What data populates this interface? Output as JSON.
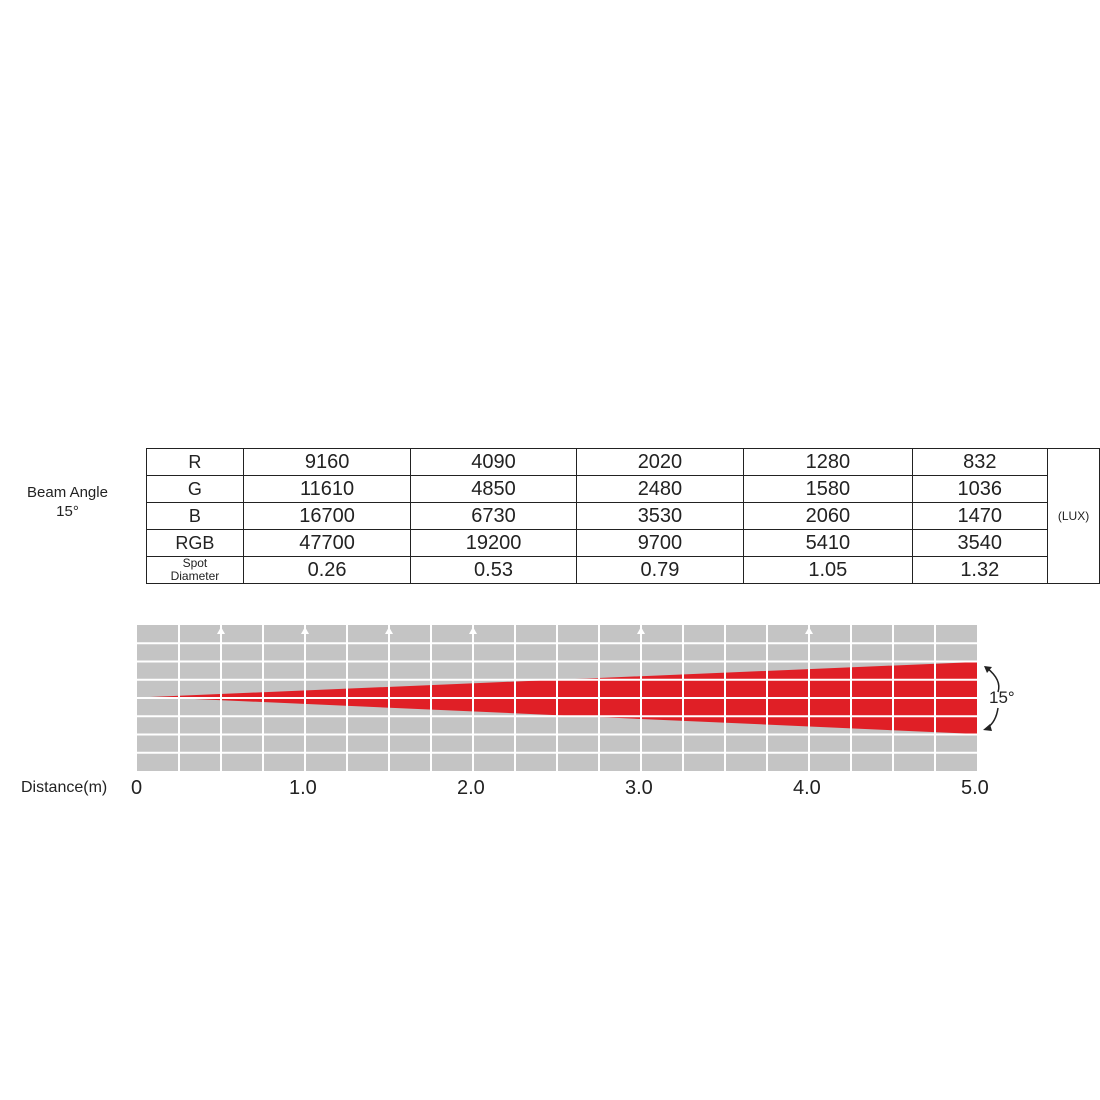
{
  "beam_angle": {
    "title": "Beam Angle",
    "value": "15°"
  },
  "unit": "(LUX)",
  "rows": [
    {
      "label": "R",
      "values": [
        "9160",
        "4090",
        "2020",
        "1280",
        "832"
      ]
    },
    {
      "label": "G",
      "values": [
        "11610",
        "4850",
        "2480",
        "1580",
        "1036"
      ]
    },
    {
      "label": "B",
      "values": [
        "16700",
        "6730",
        "3530",
        "2060",
        "1470"
      ]
    },
    {
      "label": "RGB",
      "values": [
        "47700",
        "19200",
        "9700",
        "5410",
        "3540"
      ]
    },
    {
      "label": "Spot Diameter",
      "values": [
        "0.26",
        "0.53",
        "0.79",
        "1.05",
        "1.32"
      ]
    }
  ],
  "diagram": {
    "distance_label": "Distance(m)",
    "ticks": [
      "0",
      "1.0",
      "2.0",
      "3.0",
      "4.0",
      "5.0"
    ],
    "angle_label": "15°",
    "beam_color": "#e01f26",
    "grid_color": "#c4c4c4"
  }
}
